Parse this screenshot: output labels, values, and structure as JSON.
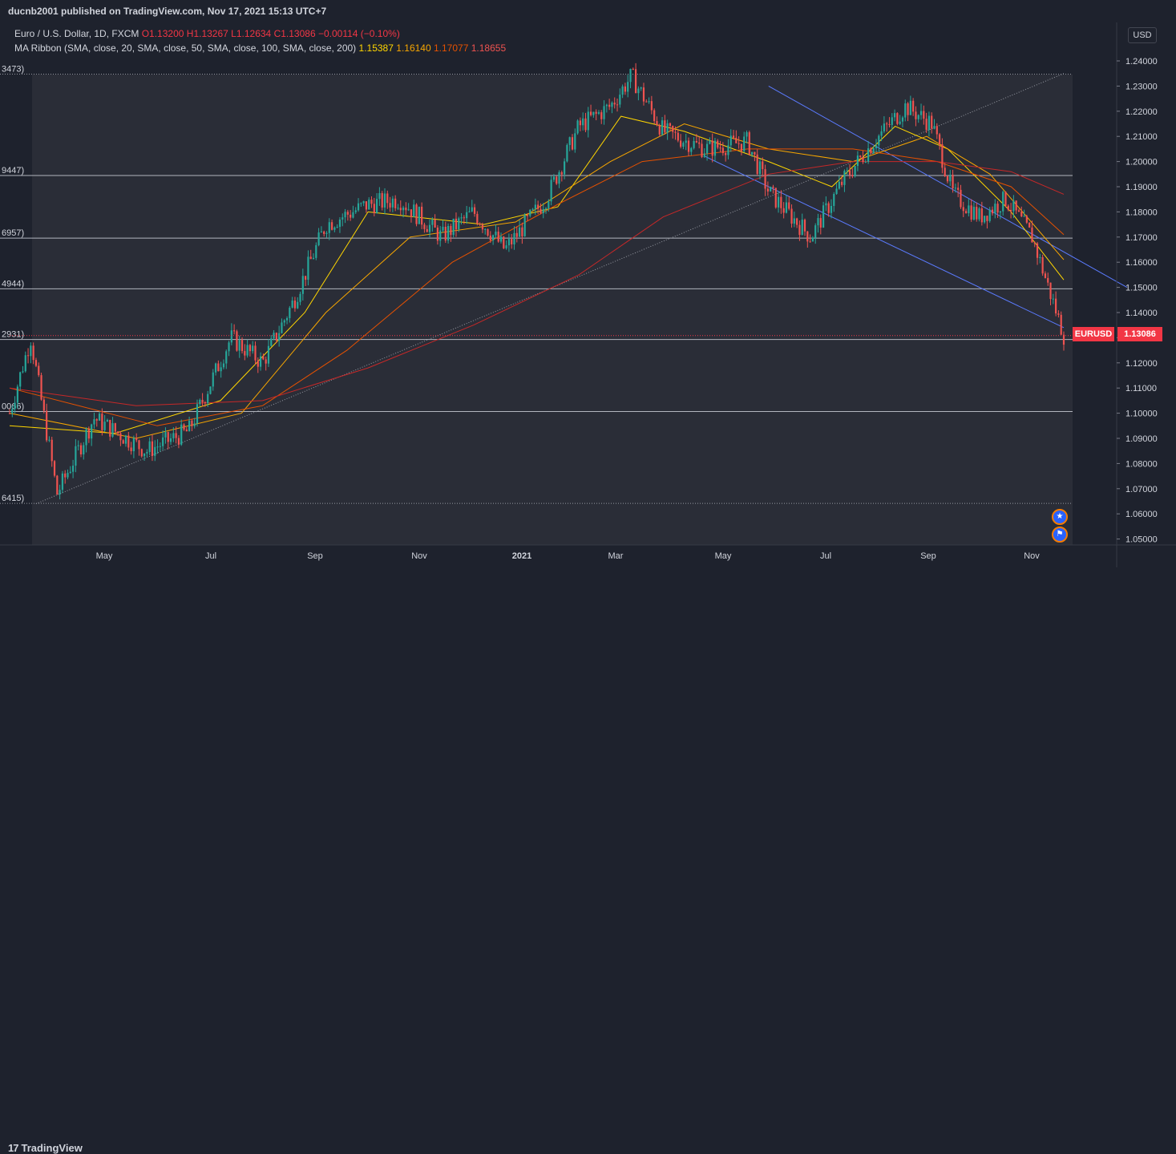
{
  "header": {
    "publisher": "ducnb2001 published on TradingView.com, Nov 17, 2021 15:13 UTC+7"
  },
  "legend": {
    "symbol": "Euro / U.S. Dollar, 1D, FXCM",
    "open": "O1.13200",
    "high": "H1.13267",
    "low": "L1.12634",
    "close": "C1.13086",
    "change": "−0.00114 (−0.10%)",
    "ma_label": "MA Ribbon (SMA, close, 20, SMA, close, 50, SMA, close, 100, SMA, close, 200)",
    "ma_values": [
      "1.15387",
      "1.16140",
      "1.17077",
      "1.18655"
    ],
    "ma_colors": [
      "#ffd600",
      "#f7a600",
      "#e65100",
      "#c62828"
    ]
  },
  "price_axis": {
    "currency": "USD",
    "ticks": [
      "1.24000",
      "1.23000",
      "1.22000",
      "1.21000",
      "1.20000",
      "1.19000",
      "1.18000",
      "1.17000",
      "1.16000",
      "1.15000",
      "1.14000",
      "1.13000",
      "1.12000",
      "1.11000",
      "1.10000",
      "1.09000",
      "1.08000",
      "1.07000",
      "1.06000",
      "1.05000"
    ]
  },
  "price_tag": {
    "symbol": "EURUSD",
    "value": "1.13086",
    "color": "#f23645"
  },
  "level_labels": [
    "3473)",
    "9447)",
    "6957)",
    "4944)",
    "2931)",
    "0066)",
    "6415)"
  ],
  "footer": {
    "logo_mark": "17",
    "brand": "TradingView"
  },
  "event_icons": [
    "eu-flag-icon",
    "us-flag-icon"
  ],
  "colors": {
    "background": "#1e222d",
    "plot_area": "#2a2d37",
    "up": "#26a69a",
    "down": "#ef5350",
    "trendline": "#5b7bff"
  },
  "chart_data": {
    "type": "candlestick",
    "title": "Euro / U.S. Dollar, 1D, FXCM",
    "x_ticks": [
      "May",
      "Jul",
      "Sep",
      "Nov",
      "2021",
      "Mar",
      "May",
      "Jul",
      "Sep",
      "Nov"
    ],
    "ylim": [
      1.045,
      1.245
    ],
    "horizontal_levels": [
      1.23473,
      1.19447,
      1.16957,
      1.14944,
      1.12931,
      1.10066,
      1.06415
    ],
    "last_price": 1.13086,
    "price_anchors": [
      {
        "x": 0.0,
        "y": 1.1
      },
      {
        "x": 0.02,
        "y": 1.13
      },
      {
        "x": 0.045,
        "y": 1.068
      },
      {
        "x": 0.08,
        "y": 1.098
      },
      {
        "x": 0.13,
        "y": 1.085
      },
      {
        "x": 0.17,
        "y": 1.093
      },
      {
        "x": 0.21,
        "y": 1.13
      },
      {
        "x": 0.24,
        "y": 1.12
      },
      {
        "x": 0.27,
        "y": 1.145
      },
      {
        "x": 0.3,
        "y": 1.175
      },
      {
        "x": 0.34,
        "y": 1.183
      },
      {
        "x": 0.37,
        "y": 1.185
      },
      {
        "x": 0.41,
        "y": 1.17
      },
      {
        "x": 0.44,
        "y": 1.18
      },
      {
        "x": 0.47,
        "y": 1.165
      },
      {
        "x": 0.51,
        "y": 1.186
      },
      {
        "x": 0.54,
        "y": 1.214
      },
      {
        "x": 0.57,
        "y": 1.222
      },
      {
        "x": 0.59,
        "y": 1.234
      },
      {
        "x": 0.62,
        "y": 1.212
      },
      {
        "x": 0.66,
        "y": 1.205
      },
      {
        "x": 0.7,
        "y": 1.208
      },
      {
        "x": 0.72,
        "y": 1.188
      },
      {
        "x": 0.76,
        "y": 1.17
      },
      {
        "x": 0.79,
        "y": 1.192
      },
      {
        "x": 0.82,
        "y": 1.208
      },
      {
        "x": 0.85,
        "y": 1.222
      },
      {
        "x": 0.875,
        "y": 1.215
      },
      {
        "x": 0.895,
        "y": 1.187
      },
      {
        "x": 0.92,
        "y": 1.178
      },
      {
        "x": 0.945,
        "y": 1.185
      },
      {
        "x": 0.97,
        "y": 1.17
      },
      {
        "x": 1.0,
        "y": 1.131
      }
    ],
    "moving_averages": [
      {
        "name": "SMA 20",
        "color": "#ffd600",
        "points": [
          [
            0,
            1.095
          ],
          [
            0.1,
            1.092
          ],
          [
            0.2,
            1.105
          ],
          [
            0.28,
            1.14
          ],
          [
            0.34,
            1.18
          ],
          [
            0.45,
            1.175
          ],
          [
            0.52,
            1.182
          ],
          [
            0.58,
            1.218
          ],
          [
            0.64,
            1.212
          ],
          [
            0.72,
            1.2
          ],
          [
            0.78,
            1.19
          ],
          [
            0.84,
            1.214
          ],
          [
            0.89,
            1.205
          ],
          [
            0.95,
            1.18
          ],
          [
            1.0,
            1.153
          ]
        ]
      },
      {
        "name": "SMA 50",
        "color": "#f7a600",
        "points": [
          [
            0,
            1.1
          ],
          [
            0.12,
            1.09
          ],
          [
            0.22,
            1.1
          ],
          [
            0.3,
            1.14
          ],
          [
            0.38,
            1.17
          ],
          [
            0.48,
            1.176
          ],
          [
            0.57,
            1.2
          ],
          [
            0.64,
            1.215
          ],
          [
            0.72,
            1.205
          ],
          [
            0.8,
            1.2
          ],
          [
            0.87,
            1.21
          ],
          [
            0.93,
            1.195
          ],
          [
            1.0,
            1.161
          ]
        ]
      },
      {
        "name": "SMA 100",
        "color": "#e65100",
        "points": [
          [
            0,
            1.11
          ],
          [
            0.14,
            1.095
          ],
          [
            0.24,
            1.103
          ],
          [
            0.32,
            1.125
          ],
          [
            0.42,
            1.16
          ],
          [
            0.52,
            1.183
          ],
          [
            0.6,
            1.2
          ],
          [
            0.7,
            1.205
          ],
          [
            0.8,
            1.205
          ],
          [
            0.88,
            1.2
          ],
          [
            0.95,
            1.19
          ],
          [
            1.0,
            1.171
          ]
        ]
      },
      {
        "name": "SMA 200",
        "color": "#c62828",
        "points": [
          [
            0,
            1.11
          ],
          [
            0.12,
            1.103
          ],
          [
            0.24,
            1.105
          ],
          [
            0.34,
            1.118
          ],
          [
            0.44,
            1.135
          ],
          [
            0.54,
            1.155
          ],
          [
            0.62,
            1.178
          ],
          [
            0.72,
            1.195
          ],
          [
            0.8,
            1.2
          ],
          [
            0.88,
            1.2
          ],
          [
            0.95,
            1.196
          ],
          [
            1.0,
            1.187
          ]
        ]
      }
    ],
    "annotations": [
      {
        "type": "dotted-trendline",
        "from": [
          0.025,
          1.064
        ],
        "to": [
          1.0,
          1.235
        ]
      },
      {
        "type": "channel-upper",
        "from": [
          0.72,
          1.23
        ],
        "to": [
          1.06,
          1.15
        ]
      },
      {
        "type": "channel-lower",
        "from": [
          0.66,
          1.202
        ],
        "to": [
          1.0,
          1.134
        ]
      }
    ]
  }
}
